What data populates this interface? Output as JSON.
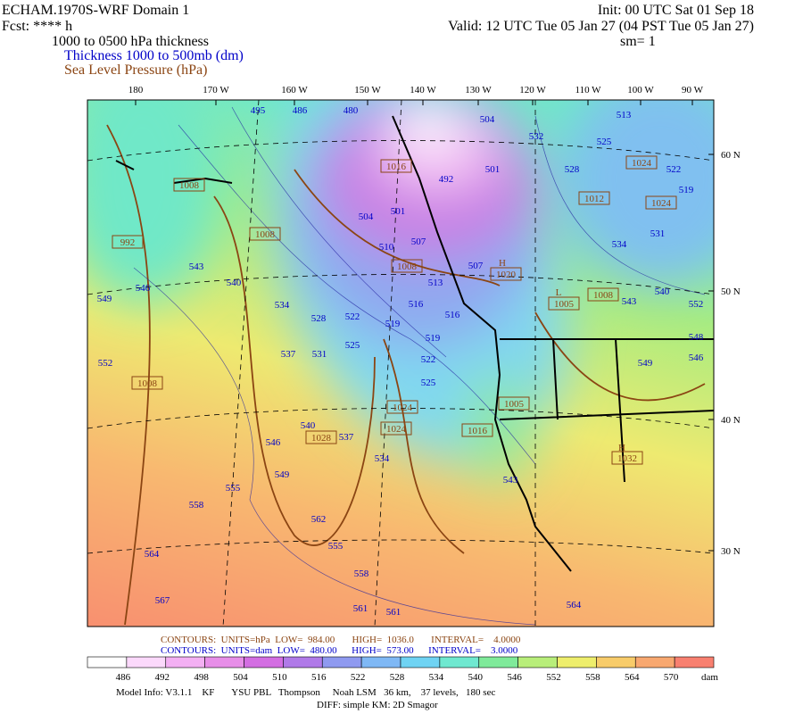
{
  "header": {
    "title": "ECHAM.1970S-WRF Domain 1",
    "forecast": "Fcst: **** h",
    "init": "Init: 00 UTC Sat 01 Sep 18",
    "valid": "Valid: 12 UTC Tue 05 Jan 27 (04 PST Tue 05 Jan 27)",
    "field": "1000 to 0500 hPa thickness",
    "smoothing": "sm= 1",
    "legend_thickness": "Thickness 1000 to 500mb (dm)",
    "legend_pressure": "Sea Level Pressure (hPa)"
  },
  "map": {
    "longitude_labels": [
      "180",
      "170 W",
      "160 W",
      "150 W",
      "140 W",
      "130 W",
      "120 W",
      "110 W",
      "100 W",
      "90 W"
    ],
    "latitude_labels": [
      "60 N",
      "50 N",
      "40 N",
      "30 N"
    ],
    "thickness_labels": [
      "495",
      "486",
      "480",
      "504",
      "513",
      "532",
      "525",
      "528",
      "522",
      "519",
      "501",
      "492",
      "504",
      "501",
      "507",
      "510",
      "534",
      "531",
      "507",
      "513",
      "516",
      "516",
      "519",
      "519",
      "522",
      "528",
      "534",
      "525",
      "531",
      "537",
      "522",
      "525",
      "543",
      "540",
      "552",
      "549",
      "548",
      "546",
      "543",
      "546",
      "540",
      "549",
      "552",
      "546",
      "549",
      "540",
      "537",
      "534",
      "543",
      "555",
      "558",
      "562",
      "555",
      "558",
      "564",
      "567",
      "561",
      "561",
      "564"
    ],
    "pressure_labels": [
      "1008",
      "1008",
      "992",
      "1008",
      "1020",
      "1008",
      "1005",
      "1024",
      "1024",
      "1012",
      "1016",
      "1008",
      "1024",
      "1005",
      "1024",
      "1028",
      "1016",
      "1032"
    ],
    "centers": [
      "H",
      "L",
      "H"
    ]
  },
  "footer": {
    "pressure_contours": "CONTOURS:  UNITS=hPa  LOW=  984.00       HIGH=  1036.0       INTERVAL=    4.0000",
    "thickness_contours": "CONTOURS:  UNITS=dam  LOW=  480.00      HIGH=  573.00      INTERVAL=    3.0000",
    "model_info": "Model Info: V3.1.1    KF       YSU PBL   Thompson     Noah LSM   36 km,    37 levels,   180 sec",
    "diff": "DIFF: simple KM: 2D Smagor"
  },
  "colorbar": {
    "labels": [
      "486",
      "492",
      "498",
      "504",
      "510",
      "516",
      "522",
      "528",
      "534",
      "540",
      "546",
      "552",
      "558",
      "564",
      "570"
    ],
    "unit": "dam",
    "colors": [
      "#ffffff",
      "#fbd9fb",
      "#f3b0f3",
      "#e78ee8",
      "#d36ee2",
      "#b07ae8",
      "#8f9af0",
      "#7fb8f5",
      "#6fd3f3",
      "#6fe8d0",
      "#7fea9a",
      "#b8ee7a",
      "#eeee6c",
      "#f8cc6a",
      "#f8a870",
      "#f88070"
    ]
  }
}
